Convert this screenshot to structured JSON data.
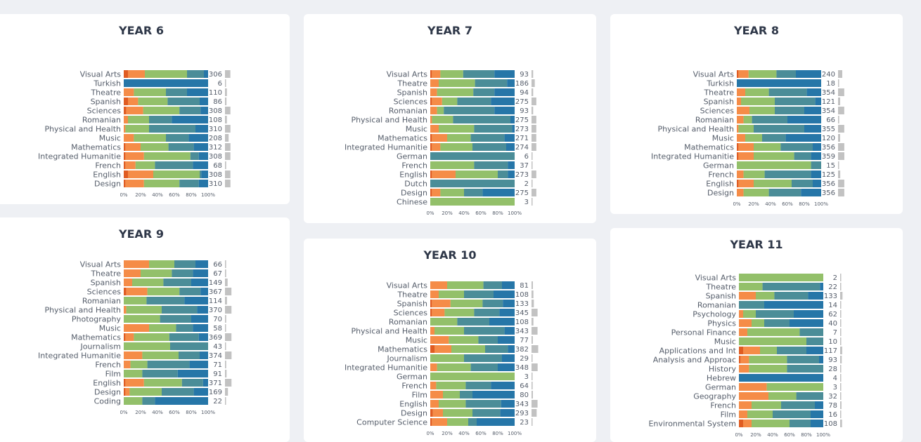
{
  "palette": {
    "c1": "#e05c22",
    "c2": "#f58c48",
    "c3": "#93c06a",
    "c4": "#4b8d98",
    "c5": "#2676a8",
    "count_bar": "#c2c2c2"
  },
  "ticks": [
    "0%",
    "20%",
    "40%",
    "60%",
    "80%",
    "100%"
  ],
  "chart_data": [
    {
      "type": "bar",
      "stacked": "percent",
      "orientation": "horizontal",
      "title": "YEAR 6",
      "categories": [
        "Visual Arts",
        "Turkish",
        "Theatre",
        "Spanish",
        "Sciences",
        "Romanian",
        "Physical and Health",
        "Music",
        "Mathematics",
        "Integrated Humanitie",
        "French",
        "English",
        "Design"
      ],
      "counts": [
        306,
        6,
        110,
        86,
        308,
        108,
        310,
        208,
        312,
        308,
        68,
        308,
        310
      ],
      "segments": [
        [
          5,
          20,
          50,
          20,
          5
        ],
        [
          0,
          0,
          0,
          0,
          100
        ],
        [
          0,
          12,
          38,
          25,
          25
        ],
        [
          5,
          12,
          35,
          38,
          10
        ],
        [
          3,
          20,
          43,
          25,
          9
        ],
        [
          0,
          5,
          25,
          27,
          43
        ],
        [
          0,
          2,
          28,
          55,
          15
        ],
        [
          0,
          12,
          38,
          27,
          23
        ],
        [
          2,
          18,
          33,
          30,
          17
        ],
        [
          2,
          22,
          55,
          10,
          11
        ],
        [
          2,
          12,
          23,
          45,
          18
        ],
        [
          5,
          30,
          55,
          2,
          8
        ],
        [
          2,
          22,
          42,
          23,
          11
        ]
      ]
    },
    {
      "type": "bar",
      "stacked": "percent",
      "orientation": "horizontal",
      "title": "YEAR 7",
      "categories": [
        "Visual Arts",
        "Theatre",
        "Spanish",
        "Sciences",
        "Romanian",
        "Physical and Health",
        "Music",
        "Mathematics",
        "Integrated Humanitie",
        "German",
        "French",
        "English",
        "Dutch",
        "Design",
        "Chinese"
      ],
      "counts": [
        93,
        186,
        94,
        275,
        93,
        275,
        273,
        271,
        274,
        6,
        37,
        273,
        2,
        275,
        3
      ],
      "segments": [
        [
          2,
          10,
          27,
          37,
          24
        ],
        [
          0,
          10,
          43,
          38,
          9
        ],
        [
          0,
          8,
          43,
          25,
          24
        ],
        [
          2,
          12,
          18,
          40,
          28
        ],
        [
          0,
          8,
          8,
          60,
          24
        ],
        [
          0,
          2,
          25,
          68,
          5
        ],
        [
          0,
          10,
          42,
          45,
          3
        ],
        [
          2,
          18,
          28,
          40,
          12
        ],
        [
          2,
          10,
          38,
          40,
          10
        ],
        [
          0,
          0,
          0,
          100,
          0
        ],
        [
          0,
          0,
          52,
          40,
          8
        ],
        [
          2,
          28,
          50,
          12,
          8
        ],
        [
          0,
          0,
          0,
          100,
          0
        ],
        [
          2,
          10,
          28,
          22,
          38
        ],
        [
          0,
          0,
          100,
          0,
          0
        ]
      ]
    },
    {
      "type": "bar",
      "stacked": "percent",
      "orientation": "horizontal",
      "title": "YEAR 8",
      "categories": [
        "Visual Arts",
        "Turkish",
        "Theatre",
        "Spanish",
        "Sciences",
        "Romanian",
        "Physical and Health",
        "Music",
        "Mathematics",
        "Integrated Humanitie",
        "German",
        "French",
        "English",
        "Design"
      ],
      "counts": [
        240,
        18,
        354,
        121,
        354,
        66,
        355,
        120,
        356,
        359,
        15,
        125,
        356,
        356
      ],
      "segments": [
        [
          2,
          12,
          33,
          23,
          30
        ],
        [
          0,
          0,
          0,
          0,
          100
        ],
        [
          0,
          10,
          28,
          45,
          17
        ],
        [
          0,
          5,
          40,
          48,
          7
        ],
        [
          0,
          15,
          30,
          35,
          20
        ],
        [
          0,
          8,
          10,
          42,
          40
        ],
        [
          0,
          2,
          18,
          60,
          20
        ],
        [
          0,
          10,
          20,
          28,
          42
        ],
        [
          2,
          18,
          32,
          38,
          10
        ],
        [
          2,
          18,
          48,
          20,
          12
        ],
        [
          0,
          0,
          88,
          12,
          0
        ],
        [
          0,
          8,
          25,
          55,
          12
        ],
        [
          2,
          18,
          45,
          25,
          10
        ],
        [
          0,
          8,
          30,
          38,
          24
        ]
      ]
    },
    {
      "type": "bar",
      "stacked": "percent",
      "orientation": "horizontal",
      "title": "YEAR 9",
      "categories": [
        "Visual Arts",
        "Theatre",
        "Spanish",
        "Sciences",
        "Romanian",
        "Physical and Health",
        "Photography",
        "Music",
        "Mathematics",
        "Journalism",
        "Integrated Humanitie",
        "French",
        "Film",
        "English",
        "Design",
        "Coding"
      ],
      "counts": [
        66,
        67,
        149,
        367,
        114,
        370,
        70,
        58,
        369,
        43,
        374,
        71,
        91,
        371,
        169,
        22
      ],
      "segments": [
        [
          0,
          30,
          30,
          25,
          15
        ],
        [
          0,
          20,
          37,
          25,
          18
        ],
        [
          0,
          10,
          37,
          33,
          20
        ],
        [
          3,
          25,
          38,
          25,
          9
        ],
        [
          0,
          0,
          27,
          45,
          28
        ],
        [
          0,
          3,
          42,
          42,
          13
        ],
        [
          0,
          0,
          43,
          37,
          20
        ],
        [
          0,
          30,
          32,
          20,
          18
        ],
        [
          2,
          10,
          42,
          35,
          11
        ],
        [
          0,
          0,
          55,
          45,
          0
        ],
        [
          0,
          22,
          43,
          25,
          10
        ],
        [
          0,
          8,
          20,
          50,
          22
        ],
        [
          0,
          0,
          22,
          42,
          36
        ],
        [
          2,
          22,
          45,
          25,
          6
        ],
        [
          2,
          5,
          38,
          38,
          17
        ],
        [
          0,
          0,
          22,
          15,
          63
        ]
      ]
    },
    {
      "type": "bar",
      "stacked": "percent",
      "orientation": "horizontal",
      "title": "YEAR 10",
      "categories": [
        "Visual Arts",
        "Theatre",
        "Spanish",
        "Sciences",
        "Romanian",
        "Physical and Health",
        "Music",
        "Mathematics",
        "Journalism",
        "Integrated Humanitie",
        "German",
        "French",
        "Film",
        "English",
        "Design",
        "Computer Science"
      ],
      "counts": [
        81,
        108,
        133,
        345,
        108,
        343,
        77,
        382,
        29,
        348,
        3,
        64,
        80,
        343,
        293,
        23
      ],
      "segments": [
        [
          0,
          20,
          43,
          22,
          15
        ],
        [
          0,
          10,
          30,
          35,
          25
        ],
        [
          2,
          22,
          38,
          24,
          14
        ],
        [
          2,
          15,
          35,
          30,
          18
        ],
        [
          0,
          0,
          32,
          38,
          30
        ],
        [
          0,
          5,
          35,
          48,
          12
        ],
        [
          0,
          22,
          35,
          23,
          20
        ],
        [
          5,
          20,
          40,
          27,
          8
        ],
        [
          0,
          0,
          40,
          45,
          15
        ],
        [
          0,
          8,
          40,
          32,
          20
        ],
        [
          0,
          0,
          100,
          0,
          0
        ],
        [
          0,
          7,
          35,
          30,
          28
        ],
        [
          0,
          15,
          20,
          15,
          50
        ],
        [
          0,
          10,
          32,
          42,
          16
        ],
        [
          3,
          12,
          35,
          33,
          17
        ],
        [
          2,
          18,
          25,
          10,
          45
        ]
      ]
    },
    {
      "type": "bar",
      "stacked": "percent",
      "orientation": "horizontal",
      "title": "YEAR 11",
      "categories": [
        "Visual Arts",
        "Theatre",
        "Spanish",
        "Romanian",
        "Psychology",
        "Physics",
        "Personal Finance",
        "Music",
        "Applications and Int",
        "Analysis and Approac",
        "History",
        "Hebrew",
        "German",
        "Geography",
        "French",
        "Film",
        "Environmental System"
      ],
      "counts": [
        2,
        22,
        133,
        14,
        62,
        40,
        7,
        10,
        117,
        93,
        28,
        4,
        3,
        32,
        78,
        16,
        108
      ],
      "segments": [
        [
          0,
          0,
          100,
          0,
          0
        ],
        [
          0,
          0,
          28,
          68,
          4
        ],
        [
          0,
          20,
          22,
          40,
          18
        ],
        [
          0,
          0,
          0,
          30,
          70
        ],
        [
          0,
          5,
          15,
          45,
          35
        ],
        [
          0,
          15,
          15,
          30,
          40
        ],
        [
          0,
          10,
          62,
          28,
          0
        ],
        [
          0,
          0,
          80,
          20,
          0
        ],
        [
          5,
          20,
          20,
          35,
          20
        ],
        [
          2,
          10,
          45,
          38,
          5
        ],
        [
          0,
          12,
          45,
          43,
          0
        ],
        [
          0,
          0,
          0,
          0,
          100
        ],
        [
          0,
          33,
          67,
          0,
          0
        ],
        [
          0,
          35,
          33,
          32,
          0
        ],
        [
          0,
          15,
          35,
          40,
          10
        ],
        [
          0,
          10,
          30,
          45,
          15
        ],
        [
          5,
          10,
          45,
          25,
          15
        ]
      ]
    }
  ]
}
